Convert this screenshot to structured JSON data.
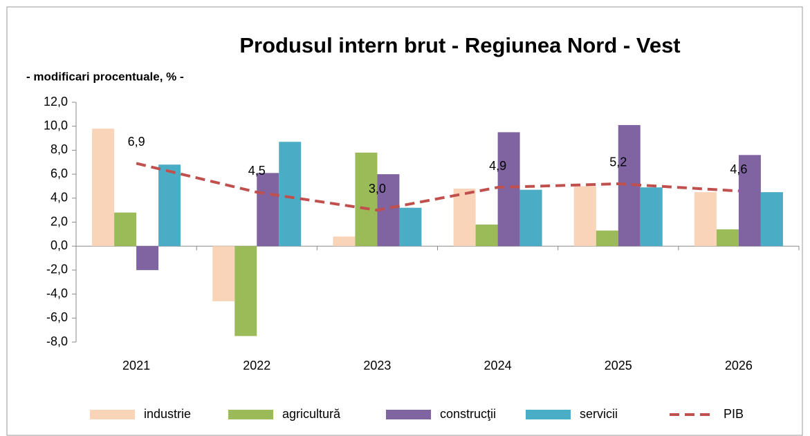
{
  "chart_data": {
    "type": "bar",
    "title": "Produsul intern brut - Regiunea Nord - Vest",
    "subtitle": "- modificari procentuale, % -",
    "categories": [
      "2021",
      "2022",
      "2023",
      "2024",
      "2025",
      "2026"
    ],
    "series": [
      {
        "name": "industrie",
        "color": "#fad4b8",
        "values": [
          9.8,
          -4.6,
          0.8,
          4.8,
          5.0,
          4.5
        ]
      },
      {
        "name": "agricultură",
        "color": "#9bbb59",
        "values": [
          2.8,
          -7.5,
          7.8,
          1.8,
          1.3,
          1.4
        ]
      },
      {
        "name": "construcţii",
        "color": "#8064a2",
        "values": [
          -2.0,
          6.1,
          6.0,
          9.5,
          10.1,
          7.6
        ]
      },
      {
        "name": "servicii",
        "color": "#4bacc6",
        "values": [
          6.8,
          8.7,
          3.2,
          4.7,
          4.9,
          4.5
        ]
      },
      {
        "name": "PIB",
        "color": "#c0504d",
        "type": "line",
        "dashed": true,
        "values": [
          6.9,
          4.5,
          3.0,
          4.9,
          5.2,
          4.6
        ],
        "value_labels": [
          "6,9",
          "4,5",
          "3,0",
          "4,9",
          "5,2",
          "4,6"
        ]
      }
    ],
    "ylim": [
      -8,
      12
    ],
    "yticks": [
      {
        "value": -8,
        "label": "-8,0"
      },
      {
        "value": -6,
        "label": "-6,0"
      },
      {
        "value": -4,
        "label": "-4,0"
      },
      {
        "value": -2,
        "label": "-2,0"
      },
      {
        "value": 0,
        "label": "0,0"
      },
      {
        "value": 2,
        "label": "2,0"
      },
      {
        "value": 4,
        "label": "4,0"
      },
      {
        "value": 6,
        "label": "6,0"
      },
      {
        "value": 8,
        "label": "8,0"
      },
      {
        "value": 10,
        "label": "10,0"
      },
      {
        "value": 12,
        "label": "12,0"
      }
    ],
    "grid": false,
    "legend": "bottom"
  }
}
